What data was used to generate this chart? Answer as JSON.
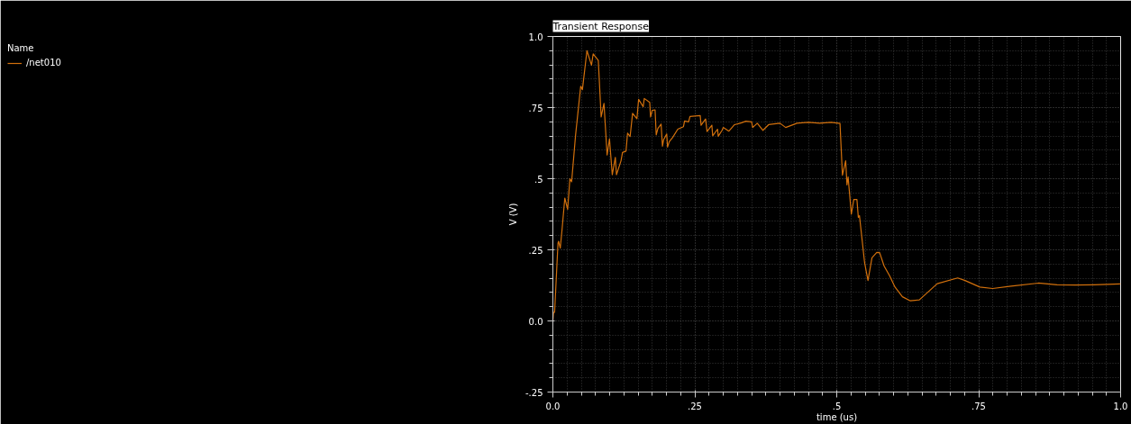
{
  "chart_data": {
    "type": "line",
    "title": "Transient Response",
    "xlabel": "time (us)",
    "ylabel": "V (V)",
    "legend_title": "Name",
    "xlim": [
      0,
      1.0
    ],
    "ylim": [
      -0.25,
      1.0
    ],
    "xticks": [
      {
        "value": 0,
        "label": "0.0"
      },
      {
        "value": 0.25,
        "label": ".25"
      },
      {
        "value": 0.5,
        "label": ".5"
      },
      {
        "value": 0.75,
        "label": ".75"
      },
      {
        "value": 1.0,
        "label": "1.0"
      }
    ],
    "yticks": [
      {
        "value": -0.25,
        "label": "-.25"
      },
      {
        "value": 0,
        "label": "0.0"
      },
      {
        "value": 0.25,
        "label": ".25"
      },
      {
        "value": 0.5,
        "label": ".5"
      },
      {
        "value": 0.75,
        "label": ".75"
      },
      {
        "value": 1.0,
        "label": "1.0"
      }
    ],
    "grid": true,
    "legend": "left",
    "line_style": "solid",
    "marker": "none",
    "series": [
      {
        "name": "/net010",
        "color": "#d2700c",
        "x": [
          0,
          0.001,
          0.003,
          0.009,
          0.01,
          0.013,
          0.016,
          0.021,
          0.026,
          0.03,
          0.033,
          0.04,
          0.049,
          0.052,
          0.06,
          0.068,
          0.071,
          0.08,
          0.085,
          0.09,
          0.0955,
          0.0997,
          0.1046,
          0.11,
          0.112,
          0.12,
          0.1226,
          0.1288,
          0.1315,
          0.136,
          0.1404,
          0.148,
          0.151,
          0.159,
          0.161,
          0.1706,
          0.172,
          0.175,
          0.18,
          0.182,
          0.185,
          0.1906,
          0.193,
          0.195,
          0.2005,
          0.202,
          0.205,
          0.211,
          0.22,
          0.23,
          0.232,
          0.239,
          0.2415,
          0.2595,
          0.261,
          0.269,
          0.2715,
          0.28,
          0.2815,
          0.29,
          0.2913,
          0.298,
          0.3,
          0.31,
          0.32,
          0.33,
          0.34,
          0.35,
          0.352,
          0.36,
          0.37,
          0.38,
          0.4,
          0.41,
          0.43,
          0.45,
          0.47,
          0.49,
          0.5057,
          0.51,
          0.5157,
          0.518,
          0.52,
          0.5257,
          0.53,
          0.5355,
          0.538,
          0.54,
          0.549,
          0.555,
          0.562,
          0.5705,
          0.5755,
          0.5834,
          0.593,
          0.6026,
          0.6156,
          0.629,
          0.6454,
          0.677,
          0.713,
          0.726,
          0.752,
          0.7745,
          0.807,
          0.855,
          0.888,
          0.92,
          0.953,
          0.9997
        ],
        "values": [
          0,
          0.03,
          0.03,
          0.273,
          0.28,
          0.256,
          0.318,
          0.432,
          0.392,
          0.5,
          0.489,
          0.654,
          0.825,
          0.813,
          0.95,
          0.899,
          0.939,
          0.916,
          0.717,
          0.765,
          0.583,
          0.64,
          0.514,
          0.575,
          0.514,
          0.563,
          0.592,
          0.597,
          0.66,
          0.648,
          0.73,
          0.711,
          0.779,
          0.753,
          0.782,
          0.768,
          0.717,
          0.74,
          0.742,
          0.654,
          0.677,
          0.692,
          0.614,
          0.637,
          0.657,
          0.611,
          0.63,
          0.645,
          0.674,
          0.683,
          0.703,
          0.7,
          0.719,
          0.722,
          0.688,
          0.71,
          0.666,
          0.688,
          0.651,
          0.674,
          0.649,
          0.67,
          0.68,
          0.667,
          0.69,
          0.695,
          0.702,
          0.7,
          0.68,
          0.695,
          0.67,
          0.69,
          0.695,
          0.68,
          0.695,
          0.698,
          0.695,
          0.698,
          0.694,
          0.512,
          0.563,
          0.478,
          0.506,
          0.375,
          0.427,
          0.427,
          0.364,
          0.37,
          0.205,
          0.142,
          0.222,
          0.241,
          0.24,
          0.193,
          0.159,
          0.119,
          0.085,
          0.071,
          0.074,
          0.131,
          0.151,
          0.142,
          0.119,
          0.114,
          0.122,
          0.133,
          0.127,
          0.126,
          0.127,
          0.13
        ]
      }
    ]
  }
}
